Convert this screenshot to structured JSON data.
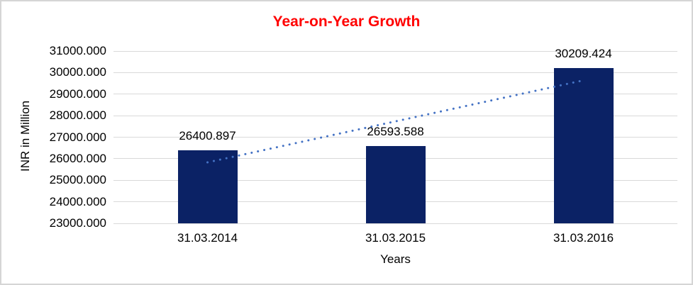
{
  "frame": {
    "background": "#ffffff",
    "border_color": "#d5d5d5"
  },
  "chart_data": {
    "type": "bar",
    "title": "Year-on-Year Growth",
    "xlabel": "Years",
    "ylabel": "INR in Million",
    "categories": [
      "31.03.2014",
      "31.03.2015",
      "31.03.2016"
    ],
    "values": [
      26400.897,
      26593.588,
      30209.424
    ],
    "data_labels": [
      "26400.897",
      "26593.588",
      "30209.424"
    ],
    "ylim": [
      23000,
      31000
    ],
    "ytick_step": 1000,
    "ytick_labels": [
      "23000.000",
      "24000.000",
      "25000.000",
      "26000.000",
      "27000.000",
      "28000.000",
      "29000.000",
      "30000.000",
      "31000.000"
    ],
    "grid": true,
    "legend": false,
    "trendline": {
      "type": "linear",
      "style": "dotted"
    },
    "colors": {
      "bar": "#0b2265",
      "trendline": "#4472c4",
      "title": "#ff0000",
      "gridline": "#d9d9d9",
      "text": "#000000"
    }
  }
}
